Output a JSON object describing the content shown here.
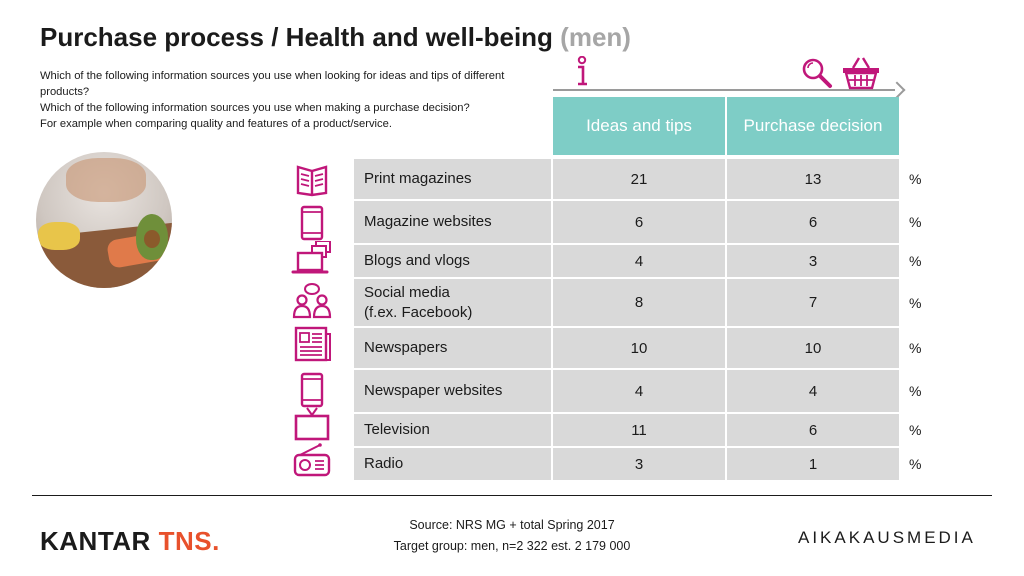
{
  "title": {
    "main": "Purchase process / Health and well-being",
    "suffix": "(men)"
  },
  "questions": [
    "Which of the following information sources you use when looking for ideas and tips of different products?",
    "Which of the following information sources you use when making a purchase decision?",
    "For example when comparing quality and features of a product/service."
  ],
  "columns": {
    "ideas": "Ideas and tips",
    "decision": "Purchase decision"
  },
  "unit": "%",
  "rows": [
    {
      "label": "Print magazines",
      "ideas": "21",
      "decision": "13",
      "icon": "book-icon"
    },
    {
      "label": "Magazine websites",
      "ideas": "6",
      "decision": "6",
      "icon": "tablet-icon"
    },
    {
      "label": "Blogs and vlogs",
      "ideas": "4",
      "decision": "3",
      "icon": "laptop-icon"
    },
    {
      "label": "Social media (f.ex. Facebook)",
      "label_line1": "Social media",
      "label_line2": "(f.ex. Facebook)",
      "ideas": "8",
      "decision": "7",
      "icon": "people-icon"
    },
    {
      "label": "Newspapers",
      "ideas": "10",
      "decision": "10",
      "icon": "newspaper-icon"
    },
    {
      "label": "Newspaper websites",
      "ideas": "4",
      "decision": "4",
      "icon": "tablet-icon"
    },
    {
      "label": "Television",
      "ideas": "11",
      "decision": "6",
      "icon": "tv-icon"
    },
    {
      "label": "Radio",
      "ideas": "3",
      "decision": "1",
      "icon": "radio-icon"
    }
  ],
  "footer": {
    "source": "Source: NRS MG + total Spring 2017",
    "target": "Target group: men, n=2 322 est. 2 179 000",
    "logo_left_1": "KANTAR",
    "logo_left_2": "TNS.",
    "logo_right": "AIKAKAUSMEDIA"
  },
  "colors": {
    "accent": "#7ecdc6",
    "icon": "#c0177a",
    "cell": "#d9d9d9",
    "kantar_orange": "#e8512c"
  }
}
